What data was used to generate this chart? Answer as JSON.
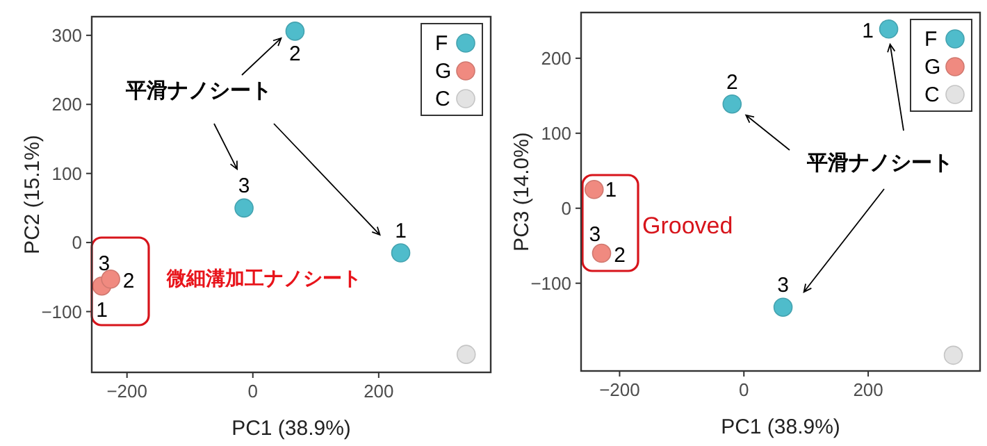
{
  "chart_data": [
    {
      "type": "scatter",
      "xlabel": "PC1 (38.9%)",
      "ylabel": "PC2 (15.1%)",
      "xlim": [
        -256,
        378
      ],
      "ylim": [
        -188,
        327
      ],
      "xticks": [
        -200,
        0,
        200
      ],
      "yticks": [
        -100,
        0,
        100,
        200,
        300
      ],
      "legend": "top right",
      "marker": "circle",
      "series": [
        {
          "name": "F",
          "color": "#4fbccb",
          "x": [
            235,
            67,
            -14
          ],
          "values": [
            -15,
            306,
            50
          ]
        },
        {
          "name": "G",
          "color": "#f08a80",
          "x": [
            -240,
            -226,
            null
          ],
          "values": [
            -63,
            -53,
            null
          ]
        },
        {
          "name": "C",
          "color": "#e3e3e3",
          "x": [
            339
          ],
          "values": [
            -162
          ]
        }
      ],
      "annotations": [
        {
          "text": "1",
          "x": 235,
          "y": -15
        },
        {
          "text": "2",
          "x": 67,
          "y": 306
        },
        {
          "text": "3",
          "x": -14,
          "y": 50
        },
        {
          "text": "1",
          "x": -240,
          "y": -63
        },
        {
          "text": "2",
          "x": -226,
          "y": -53
        },
        {
          "text": "3",
          "x": -232,
          "y": -58
        },
        "平滑ナノシート",
        "微細溝加工ナノシート"
      ]
    },
    {
      "type": "scatter",
      "xlabel": "PC1 (38.9%)",
      "ylabel": "PC3 (14.0%)",
      "xlim": [
        -262,
        380
      ],
      "ylim": [
        -217,
        261
      ],
      "xticks": [
        -200,
        0,
        200
      ],
      "yticks": [
        -100,
        0,
        100,
        200
      ],
      "legend": "top right",
      "marker": "circle",
      "series": [
        {
          "name": "F",
          "color": "#4fbccb",
          "x": [
            233,
            -19,
            63
          ],
          "values": [
            239,
            139,
            -132
          ]
        },
        {
          "name": "G",
          "color": "#f08a80",
          "x": [
            -241,
            -229,
            null
          ],
          "values": [
            25,
            -60,
            null
          ]
        },
        {
          "name": "C",
          "color": "#e3e3e3",
          "x": [
            337
          ],
          "values": [
            -196
          ]
        }
      ],
      "annotations": [
        {
          "text": "1",
          "x": 233,
          "y": 239
        },
        {
          "text": "2",
          "x": -19,
          "y": 139
        },
        {
          "text": "3",
          "x": 63,
          "y": -132
        },
        {
          "text": "1",
          "x": -241,
          "y": 25
        },
        {
          "text": "2",
          "x": -229,
          "y": -60
        },
        {
          "text": "3",
          "x": -233,
          "y": -60
        },
        "平滑ナノシート",
        "Grooved"
      ]
    }
  ]
}
